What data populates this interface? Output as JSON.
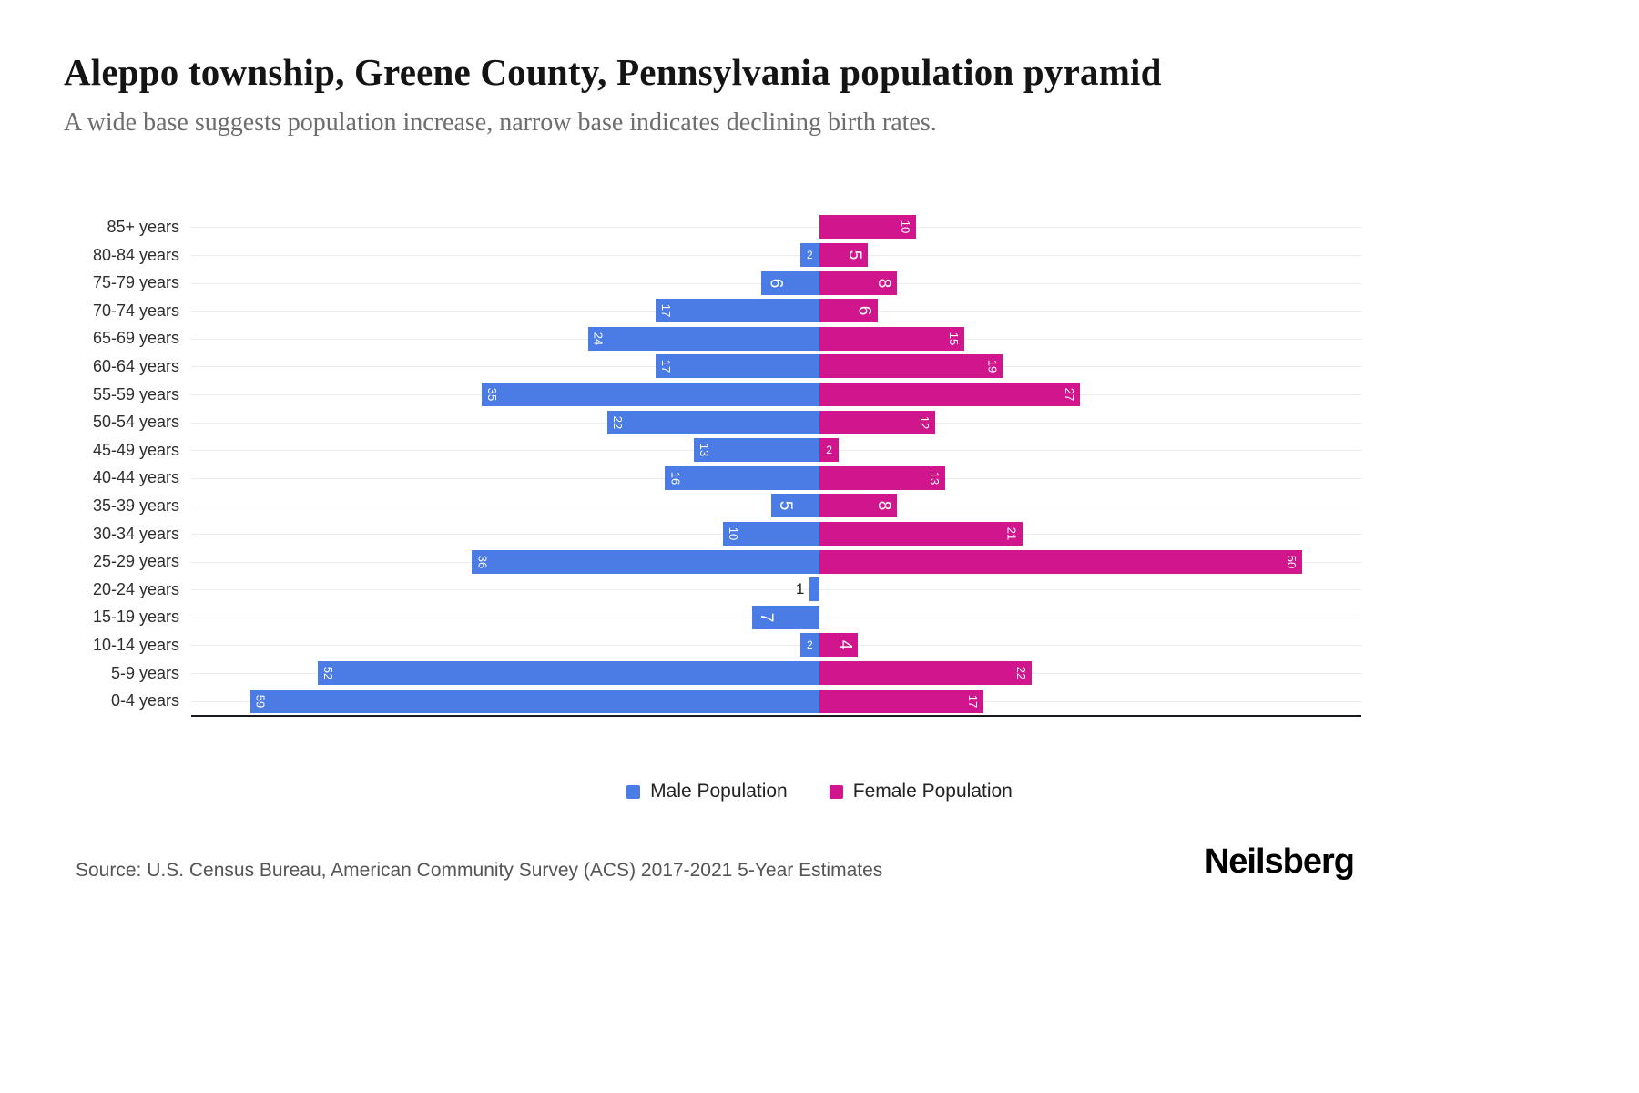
{
  "chart_data": {
    "type": "bar",
    "variant": "population-pyramid",
    "title": "Aleppo township, Greene County, Pennsylvania population pyramid",
    "subtitle": "A wide base suggests population increase, narrow base indicates declining birth rates.",
    "categories": [
      "85+ years",
      "80-84 years",
      "75-79 years",
      "70-74 years",
      "65-69 years",
      "60-64 years",
      "55-59 years",
      "50-54 years",
      "45-49 years",
      "40-44 years",
      "35-39 years",
      "30-34 years",
      "25-29 years",
      "20-24 years",
      "15-19 years",
      "10-14 years",
      "5-9 years",
      "0-4 years"
    ],
    "series": [
      {
        "name": "Male Population",
        "side": "left",
        "color": "#4b7be5",
        "values": [
          0,
          2,
          6,
          17,
          24,
          17,
          35,
          22,
          13,
          16,
          5,
          10,
          36,
          1,
          7,
          2,
          52,
          59
        ]
      },
      {
        "name": "Female Population",
        "side": "right",
        "color": "#d1158c",
        "values": [
          10,
          5,
          8,
          6,
          15,
          19,
          27,
          12,
          2,
          13,
          8,
          21,
          50,
          0,
          0,
          4,
          22,
          17
        ]
      }
    ],
    "value_axis_max": 60,
    "grid": true,
    "legend_position": "bottom",
    "bar_labels": "inside outer end, rotated vertical, white; value 1 shown outside in dark text"
  },
  "footer": {
    "source": "Source: U.S. Census Bureau, American Community Survey (ACS) 2017-2021 5-Year Estimates",
    "brand": "Neilsberg"
  }
}
